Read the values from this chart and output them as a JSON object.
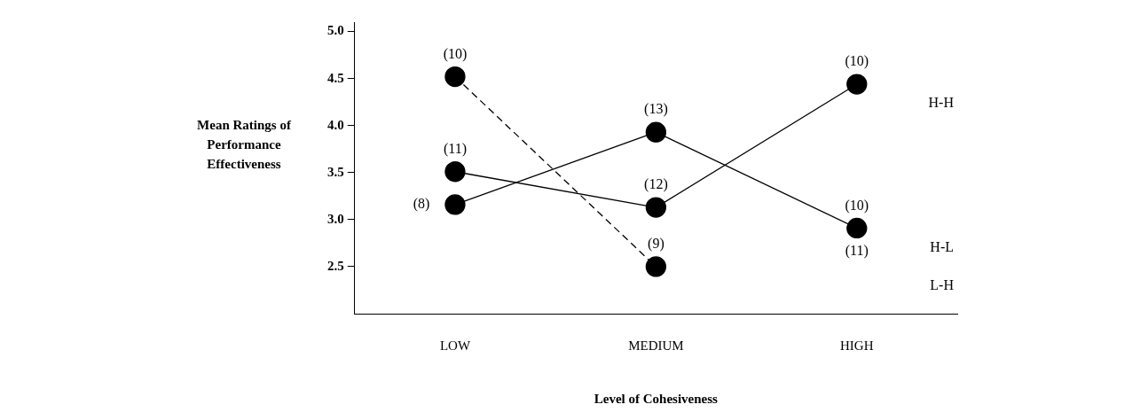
{
  "chart_data": {
    "type": "line",
    "xlabel": "Level of Cohesiveness",
    "ylabel": "Mean Ratings of Performance Effectiveness",
    "categories": [
      "LOW",
      "MEDIUM",
      "HIGH"
    ],
    "series": [
      {
        "name": "H-H",
        "color": "#000000",
        "values": [
          3.51,
          3.13,
          4.44
        ]
      },
      {
        "name": "H-L",
        "color": "#000000",
        "values": [
          3.16,
          3.93,
          2.91
        ]
      },
      {
        "name": "L-H",
        "color": "#000000",
        "values": [
          4.52,
          2.5,
          null
        ],
        "line_style": "dashed"
      }
    ],
    "ylim": [
      2.0,
      5.1
    ],
    "yticks": [
      {
        "value": 2.5,
        "label": "2.5"
      },
      {
        "value": 3,
        "label": "3.0"
      },
      {
        "value": 3.5,
        "label": "3.5"
      },
      {
        "value": 4,
        "label": "4.0"
      },
      {
        "value": 4.5,
        "label": "4.5"
      },
      {
        "value": 5,
        "label": "5.0"
      }
    ],
    "marker": "circle",
    "line_style": "solid",
    "grid": false,
    "legend": false,
    "annotations": [
      {
        "text": "(10)",
        "x": "LOW",
        "y": 4.52
      },
      {
        "text": "(11)",
        "x": "LOW",
        "y": 3.51
      },
      {
        "text": "(8)",
        "x": "LOW",
        "y": 3.16
      },
      {
        "text": "(13)",
        "x": "MEDIUM",
        "y": 3.93
      },
      {
        "text": "(12)",
        "x": "MEDIUM",
        "y": 3.13
      },
      {
        "text": "(9)",
        "x": "MEDIUM",
        "y": 2.5
      },
      {
        "text": "(10)",
        "x": "HIGH",
        "y": 4.44
      },
      {
        "text": "(10)",
        "x": "HIGH",
        "y": 2.91
      },
      {
        "text": "(11)",
        "x": "HIGH",
        "y": 2.91
      }
    ]
  }
}
